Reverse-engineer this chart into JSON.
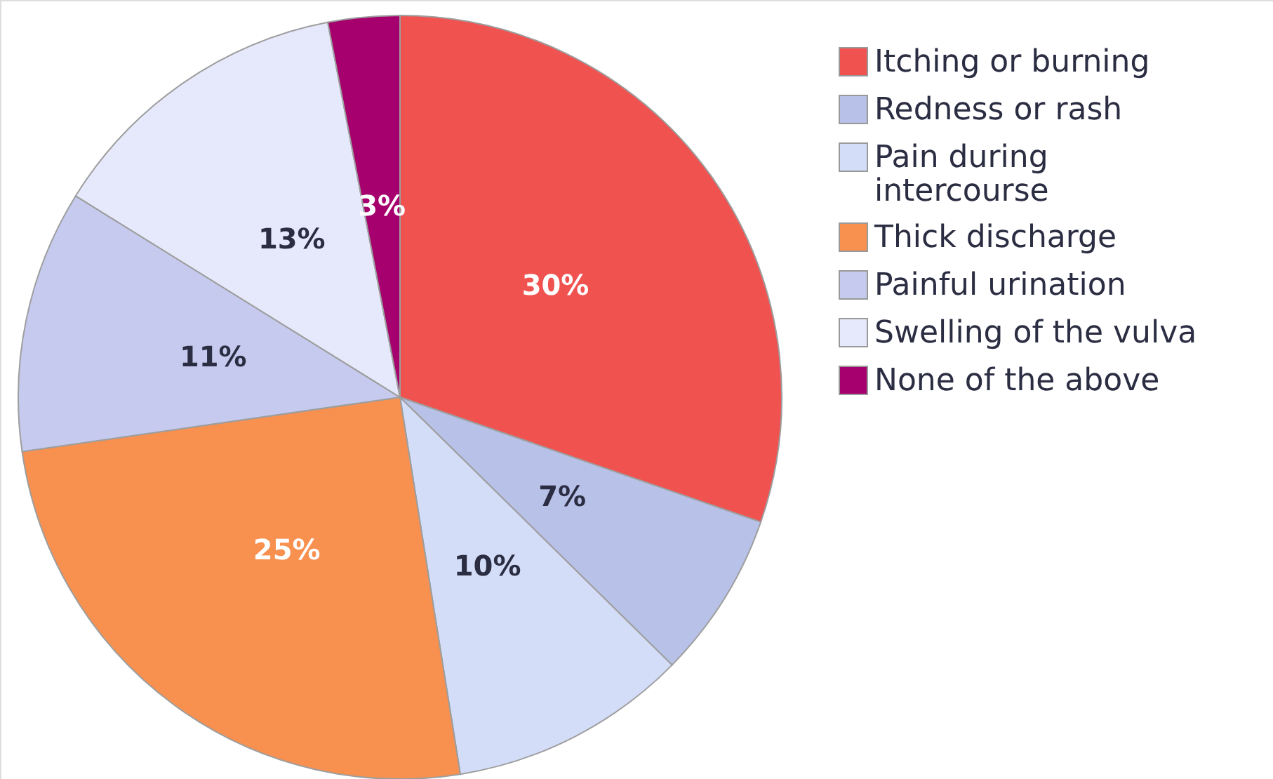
{
  "chart_data": {
    "type": "pie",
    "categories": [
      "Itching or burning",
      "Redness or rash",
      "Pain during intercourse",
      "Thick discharge",
      "Painful urination",
      "Swelling of the vulva",
      "None of the above"
    ],
    "values": [
      30,
      7,
      10,
      25,
      11,
      13,
      3
    ],
    "colors": [
      "#f05250",
      "#b8c1e7",
      "#d4ddf8",
      "#f8904f",
      "#c5caee",
      "#e6e9fb",
      "#a6006e"
    ],
    "value_labels": [
      "30%",
      "7%",
      "10%",
      "25%",
      "11%",
      "13%",
      "3%"
    ],
    "legend": "right"
  }
}
